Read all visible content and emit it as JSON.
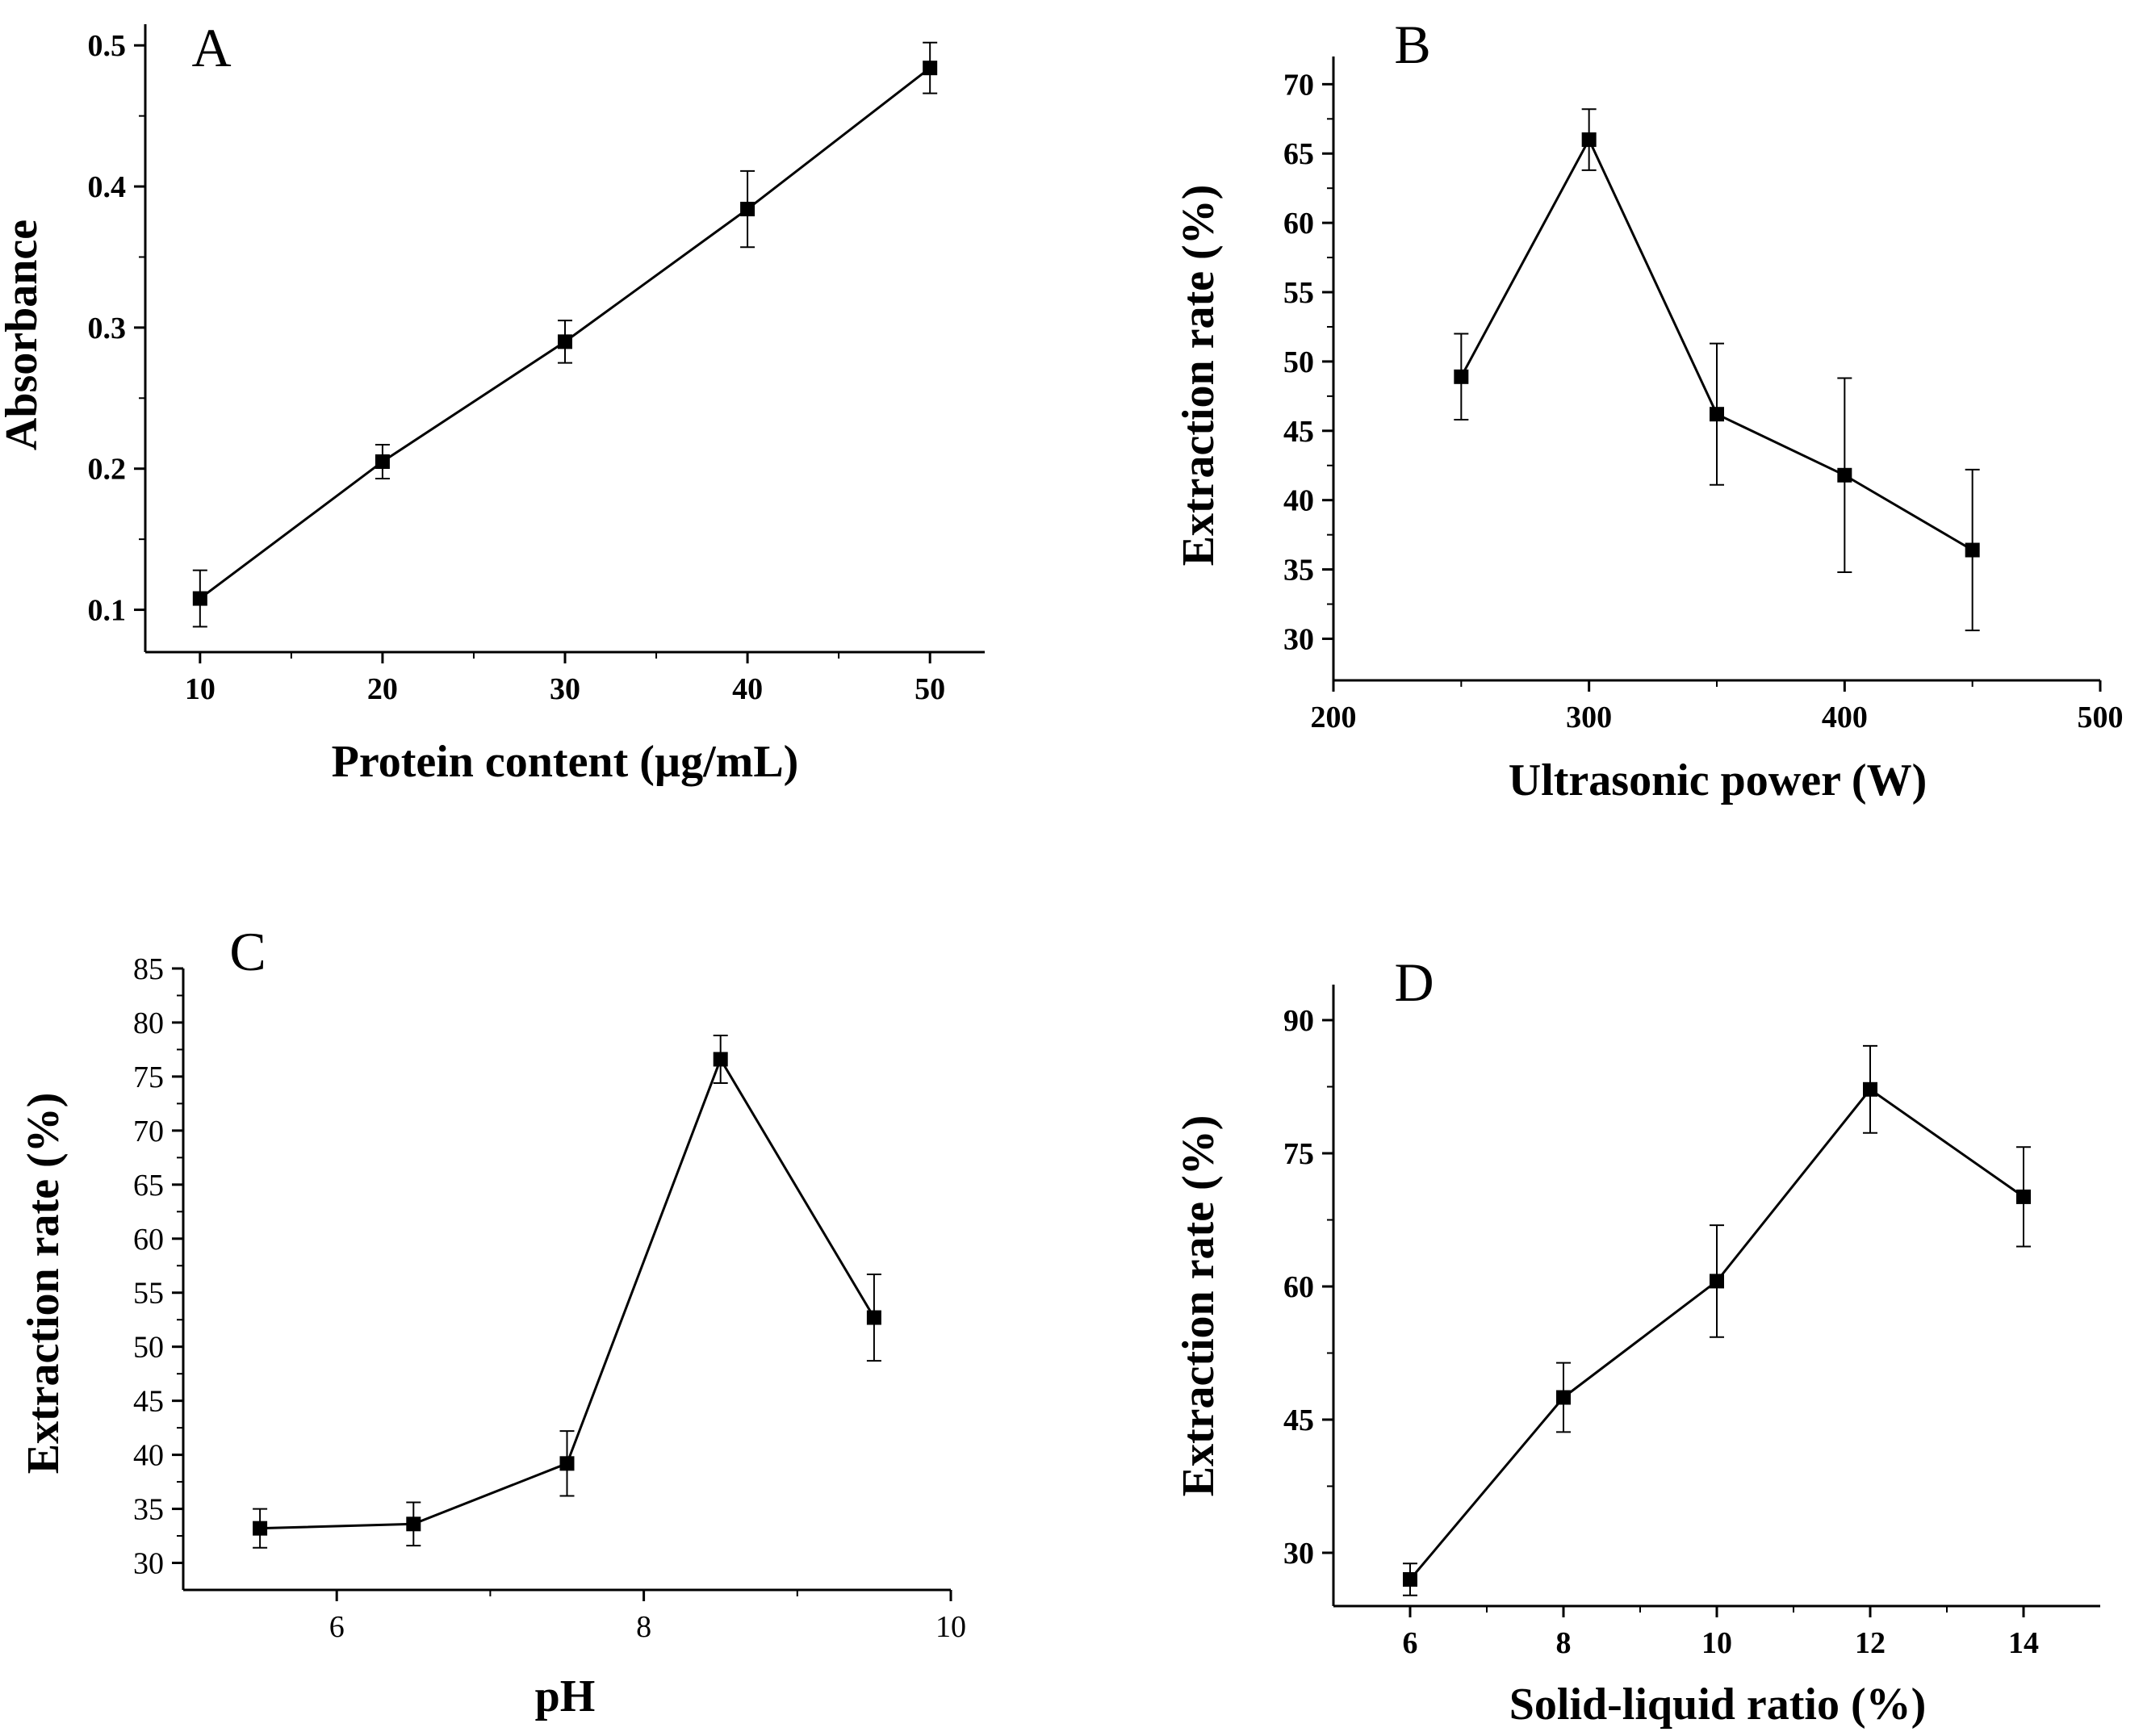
{
  "chart_data": [
    {
      "id": "A",
      "type": "line",
      "panel_label": "A",
      "xlabel": "Protein content (µg/mL)",
      "ylabel": "Absorbance",
      "xlim": [
        7,
        53
      ],
      "ylim": [
        0.07,
        0.515
      ],
      "xticks": [
        10,
        20,
        30,
        40,
        50
      ],
      "xtick_labels": [
        "10",
        "20",
        "30",
        "40",
        "50"
      ],
      "yticks": [
        0.1,
        0.2,
        0.3,
        0.4,
        0.5
      ],
      "ytick_labels": [
        "0.1",
        "0.2",
        "0.3",
        "0.4",
        "0.5"
      ],
      "bold_ticks": true,
      "series": [
        {
          "name": "Absorbance",
          "x": [
            10,
            20,
            30,
            40,
            50
          ],
          "y": [
            0.108,
            0.205,
            0.29,
            0.384,
            0.484
          ],
          "err": [
            0.02,
            0.012,
            0.015,
            0.027,
            0.018
          ]
        }
      ]
    },
    {
      "id": "B",
      "type": "line",
      "panel_label": "B",
      "xlabel": "Ultrasonic power (W)",
      "ylabel": "Extraction rate (%)",
      "xlim": [
        200,
        500
      ],
      "ylim": [
        27,
        72
      ],
      "xticks": [
        200,
        300,
        400,
        500
      ],
      "xtick_labels": [
        "200",
        "300",
        "400",
        "500"
      ],
      "yticks": [
        30,
        35,
        40,
        45,
        50,
        55,
        60,
        65,
        70
      ],
      "ytick_labels": [
        "30",
        "35",
        "40",
        "45",
        "50",
        "55",
        "60",
        "65",
        "70"
      ],
      "bold_ticks": true,
      "series": [
        {
          "name": "Extraction rate",
          "x": [
            250,
            300,
            350,
            400,
            450
          ],
          "y": [
            48.9,
            66.0,
            46.2,
            41.8,
            36.4
          ],
          "err": [
            3.1,
            2.2,
            5.1,
            7.0,
            5.8
          ]
        }
      ]
    },
    {
      "id": "C",
      "type": "line",
      "panel_label": "C",
      "xlabel": "pH",
      "ylabel": "Extraction rate (%)",
      "xlim": [
        5,
        10
      ],
      "ylim": [
        27.5,
        85
      ],
      "xticks": [
        6,
        8,
        10
      ],
      "xtick_labels": [
        "6",
        "8",
        "10"
      ],
      "yticks": [
        30,
        35,
        40,
        45,
        50,
        55,
        60,
        65,
        70,
        75,
        80,
        85
      ],
      "ytick_labels": [
        "30",
        "35",
        "40",
        "45",
        "50",
        "55",
        "60",
        "65",
        "70",
        "75",
        "80",
        "85"
      ],
      "bold_ticks": false,
      "series": [
        {
          "name": "Extraction rate",
          "x": [
            5.5,
            6.5,
            7.5,
            8.5,
            9.5
          ],
          "y": [
            33.2,
            33.6,
            39.2,
            76.6,
            52.7
          ],
          "err": [
            1.8,
            2.0,
            3.0,
            2.2,
            4.0
          ]
        }
      ]
    },
    {
      "id": "D",
      "type": "line",
      "panel_label": "D",
      "xlabel": "Solid-liquid ratio (%)",
      "ylabel": "Extraction rate (%)",
      "xlim": [
        5,
        15
      ],
      "ylim": [
        24,
        94
      ],
      "xticks": [
        6,
        8,
        10,
        12,
        14
      ],
      "xtick_labels": [
        "6",
        "8",
        "10",
        "12",
        "14"
      ],
      "yticks": [
        30,
        45,
        60,
        75,
        90
      ],
      "ytick_labels": [
        "30",
        "45",
        "60",
        "75",
        "90"
      ],
      "bold_ticks": true,
      "series": [
        {
          "name": "Extraction rate",
          "x": [
            6,
            8,
            10,
            12,
            14
          ],
          "y": [
            27.0,
            47.5,
            60.6,
            82.2,
            70.1
          ],
          "err": [
            1.8,
            3.9,
            6.3,
            4.9,
            5.6
          ]
        }
      ]
    }
  ]
}
